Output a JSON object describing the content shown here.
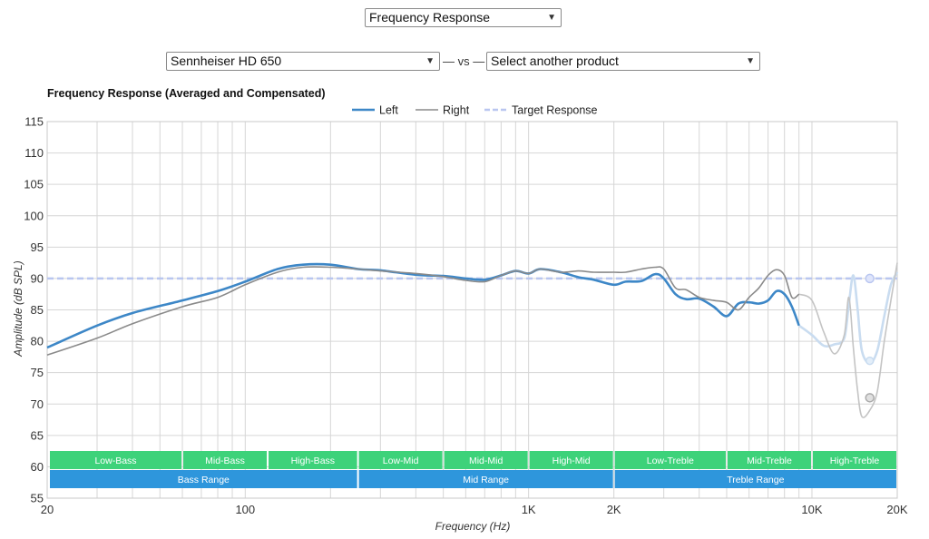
{
  "controls": {
    "measurement_select": "Frequency Response",
    "product_select": "Sennheiser HD 650",
    "separator": "— vs —",
    "compare_select": "Select another product"
  },
  "colors": {
    "left": "#3d87c7",
    "right": "#8a8a8a",
    "target": "#b9c6f0",
    "band_green": "#3dd27a",
    "band_blue": "#2e96dc",
    "grid": "#d6d6d6"
  },
  "chart_data": {
    "type": "line",
    "title": "Frequency Response (Averaged and Compensated)",
    "xlabel": "Frequency (Hz)",
    "ylabel": "Amplitude (dB SPL)",
    "x_scale": "log",
    "xlim": [
      20,
      20000
    ],
    "ylim": [
      55,
      115
    ],
    "y_ticks": [
      "115",
      "110",
      "105",
      "100",
      "95",
      "90",
      "85",
      "80",
      "75",
      "70",
      "65",
      "60",
      "55"
    ],
    "x_ticks": [
      {
        "value": 20,
        "label": "20"
      },
      {
        "value": 100,
        "label": "100"
      },
      {
        "value": 1000,
        "label": "1K"
      },
      {
        "value": 2000,
        "label": "2K"
      },
      {
        "value": 10000,
        "label": "10K"
      },
      {
        "value": 20000,
        "label": "20K"
      }
    ],
    "legend": [
      "Left",
      "Right",
      "Target Response"
    ],
    "legend_position": "top-center",
    "series": [
      {
        "name": "Left",
        "points": [
          [
            20,
            79
          ],
          [
            30,
            82.5
          ],
          [
            40,
            84.5
          ],
          [
            60,
            86.5
          ],
          [
            80,
            88
          ],
          [
            100,
            89.5
          ],
          [
            130,
            91.5
          ],
          [
            160,
            92.2
          ],
          [
            200,
            92.2
          ],
          [
            250,
            91.5
          ],
          [
            300,
            91.3
          ],
          [
            400,
            90.6
          ],
          [
            500,
            90.4
          ],
          [
            600,
            90
          ],
          [
            700,
            89.8
          ],
          [
            800,
            90.5
          ],
          [
            900,
            91.2
          ],
          [
            1000,
            90.8
          ],
          [
            1100,
            91.5
          ],
          [
            1300,
            91
          ],
          [
            1500,
            90.2
          ],
          [
            1700,
            89.8
          ],
          [
            2000,
            89
          ],
          [
            2200,
            89.5
          ],
          [
            2500,
            89.6
          ],
          [
            2800,
            90.7
          ],
          [
            3000,
            90
          ],
          [
            3300,
            87.5
          ],
          [
            3600,
            86.7
          ],
          [
            4000,
            86.8
          ],
          [
            4500,
            85.5
          ],
          [
            5000,
            84
          ],
          [
            5500,
            86
          ],
          [
            6000,
            86.2
          ],
          [
            6500,
            86
          ],
          [
            7000,
            86.5
          ],
          [
            7500,
            88
          ],
          [
            8000,
            87.5
          ],
          [
            8500,
            85.5
          ],
          [
            9000,
            82.5
          ],
          [
            10000,
            81
          ],
          [
            11000,
            79.3
          ],
          [
            12000,
            79.5
          ],
          [
            13000,
            80.5
          ],
          [
            13500,
            86
          ],
          [
            14000,
            90.5
          ],
          [
            14500,
            85
          ],
          [
            15000,
            78.5
          ],
          [
            16000,
            76.5
          ],
          [
            17000,
            78.5
          ],
          [
            18000,
            84
          ],
          [
            19000,
            89
          ],
          [
            20000,
            91
          ]
        ]
      },
      {
        "name": "Right",
        "points": [
          [
            20,
            77.8
          ],
          [
            30,
            80.5
          ],
          [
            40,
            82.8
          ],
          [
            60,
            85.5
          ],
          [
            80,
            87
          ],
          [
            100,
            89
          ],
          [
            130,
            91
          ],
          [
            160,
            91.8
          ],
          [
            200,
            91.8
          ],
          [
            250,
            91.5
          ],
          [
            300,
            91.2
          ],
          [
            400,
            90.8
          ],
          [
            500,
            90.3
          ],
          [
            600,
            89.7
          ],
          [
            700,
            89.5
          ],
          [
            800,
            90.5
          ],
          [
            900,
            91.2
          ],
          [
            1000,
            90.8
          ],
          [
            1100,
            91.5
          ],
          [
            1300,
            91
          ],
          [
            1500,
            91.2
          ],
          [
            1700,
            91
          ],
          [
            2000,
            91
          ],
          [
            2200,
            91
          ],
          [
            2500,
            91.5
          ],
          [
            2800,
            91.8
          ],
          [
            3000,
            91.5
          ],
          [
            3300,
            88.5
          ],
          [
            3600,
            88.2
          ],
          [
            4000,
            87
          ],
          [
            4500,
            86.5
          ],
          [
            5000,
            86.2
          ],
          [
            5500,
            85
          ],
          [
            6000,
            87
          ],
          [
            6500,
            88.5
          ],
          [
            7000,
            90.5
          ],
          [
            7500,
            91.4
          ],
          [
            8000,
            90.5
          ],
          [
            8500,
            87
          ],
          [
            9000,
            87.5
          ],
          [
            10000,
            86.5
          ],
          [
            11000,
            81.5
          ],
          [
            12000,
            78
          ],
          [
            13000,
            81
          ],
          [
            13500,
            87
          ],
          [
            14000,
            79
          ],
          [
            14500,
            72
          ],
          [
            15000,
            68
          ],
          [
            16000,
            69
          ],
          [
            17000,
            72
          ],
          [
            18000,
            80
          ],
          [
            19000,
            86.5
          ],
          [
            20000,
            92.5
          ]
        ]
      }
    ],
    "target": {
      "name": "Target Response",
      "value": 90
    },
    "freq_bands": [
      {
        "label": "Low-Bass",
        "from": 20,
        "to": 60
      },
      {
        "label": "Mid-Bass",
        "from": 60,
        "to": 120
      },
      {
        "label": "High-Bass",
        "from": 120,
        "to": 250
      },
      {
        "label": "Low-Mid",
        "from": 250,
        "to": 500
      },
      {
        "label": "Mid-Mid",
        "from": 500,
        "to": 1000
      },
      {
        "label": "High-Mid",
        "from": 1000,
        "to": 2000
      },
      {
        "label": "Low-Treble",
        "from": 2000,
        "to": 5000
      },
      {
        "label": "Mid-Treble",
        "from": 5000,
        "to": 10000
      },
      {
        "label": "High-Treble",
        "from": 10000,
        "to": 20000
      }
    ],
    "ranges": [
      {
        "label": "Bass Range",
        "from": 20,
        "to": 250
      },
      {
        "label": "Mid Range",
        "from": 250,
        "to": 2000
      },
      {
        "label": "Treble Range",
        "from": 2000,
        "to": 20000
      }
    ]
  }
}
